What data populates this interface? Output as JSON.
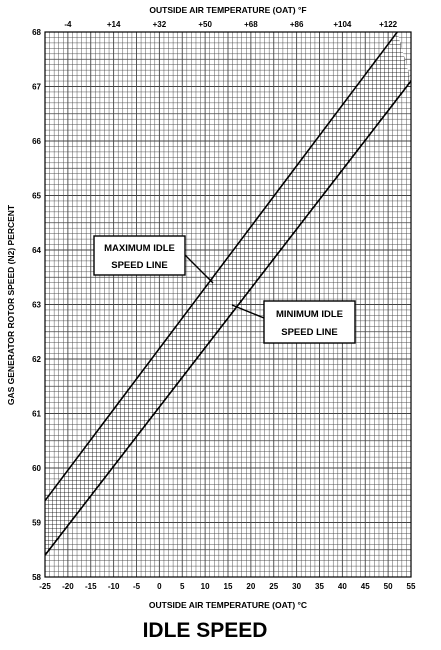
{
  "chart_data": {
    "type": "area",
    "title": "IDLE SPEED",
    "xlabel": "OUTSIDE AIR TEMPERATURE (OAT) °C",
    "x2label": "OUTSIDE AIR TEMPERATURE (OAT) °F",
    "ylabel": "GAS GENERATOR ROTOR SPEED (N2) PERCENT",
    "xlim": [
      -25,
      55
    ],
    "ylim": [
      58,
      68
    ],
    "x_ticks": [
      -25,
      -20,
      -15,
      -10,
      -5,
      0,
      5,
      10,
      15,
      20,
      25,
      30,
      35,
      40,
      45,
      50,
      55
    ],
    "y_ticks": [
      58,
      59,
      60,
      61,
      62,
      63,
      64,
      65,
      66,
      67,
      68
    ],
    "x2_ticks": [
      "-4",
      "+14",
      "+32",
      "+50",
      "+68",
      "+86",
      "+104",
      "+122"
    ],
    "grid": true,
    "series": [
      {
        "name": "MAXIMUM IDLE SPEED LINE",
        "x": [
          -25,
          52
        ],
        "y": [
          59.4,
          68
        ]
      },
      {
        "name": "MINIMUM IDLE SPEED LINE",
        "x": [
          -25,
          55
        ],
        "y": [
          58.4,
          67.1
        ]
      }
    ],
    "annotations": [
      {
        "line1": "MAXIMUM IDLE",
        "line2": "SPEED LINE"
      },
      {
        "line1": "MINIMUM IDLE",
        "line2": "SPEED LINE"
      }
    ]
  }
}
